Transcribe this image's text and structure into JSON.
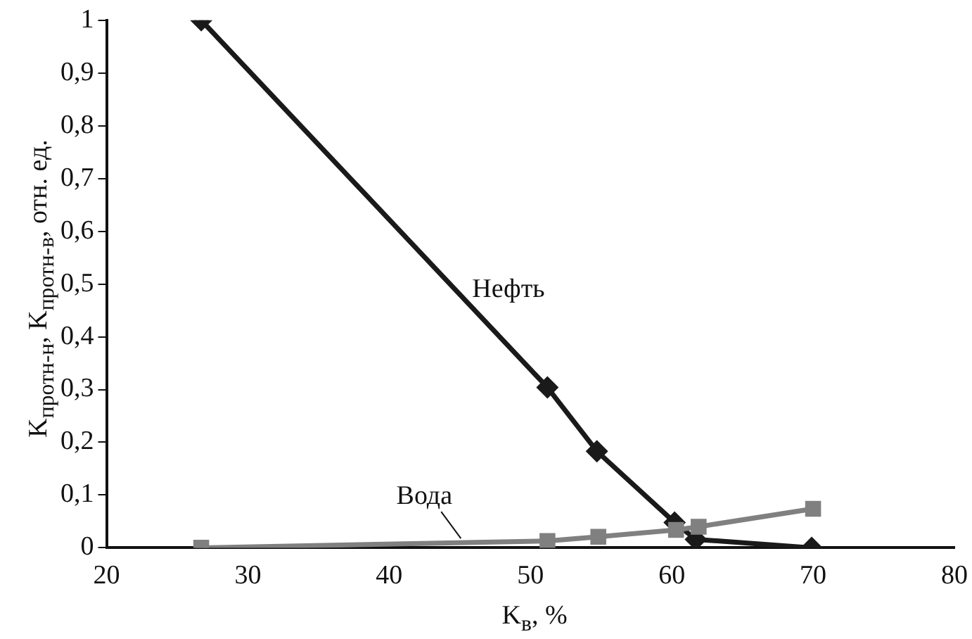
{
  "chart_data": {
    "type": "line",
    "xlabel": "K$_{в}$, %",
    "ylabel": "K$_{протн-н}$, K$_{протн-в}$, отн. ед.",
    "xlim": [
      20,
      80
    ],
    "xticks": [
      20,
      30,
      40,
      50,
      60,
      70,
      80
    ],
    "ylim": [
      0,
      1
    ],
    "yticks": [
      0,
      {
        "value": 0.1,
        "label": "0,1"
      },
      {
        "value": 0.2,
        "label": "0,2"
      },
      {
        "value": 0.3,
        "label": "0,3"
      },
      {
        "value": 0.4,
        "label": "0,4"
      },
      {
        "value": 0.5,
        "label": "0,5"
      },
      {
        "value": 0.6,
        "label": "0,6"
      },
      {
        "value": 0.7,
        "label": "0,7"
      },
      {
        "value": 0.8,
        "label": "0,8"
      },
      {
        "value": 0.9,
        "label": "0,9"
      },
      1
    ],
    "grid": false,
    "legend": false,
    "line_style": "solid",
    "series": [
      {
        "name": "Нефть",
        "color": "#1a1a1a",
        "marker": "diamond",
        "x": [
          26.7,
          51.2,
          54.7,
          60.2,
          61.7,
          69.9
        ],
        "values": [
          1,
          0.304,
          0.183,
          0.048,
          0.016,
          0
        ]
      },
      {
        "name": "Вода",
        "color": "#808080",
        "marker": "square",
        "x": [
          26.7,
          51.2,
          54.8,
          60.3,
          61.9,
          70
        ],
        "values": [
          0,
          0.013,
          0.021,
          0.034,
          0.04,
          0.074
        ]
      }
    ]
  }
}
